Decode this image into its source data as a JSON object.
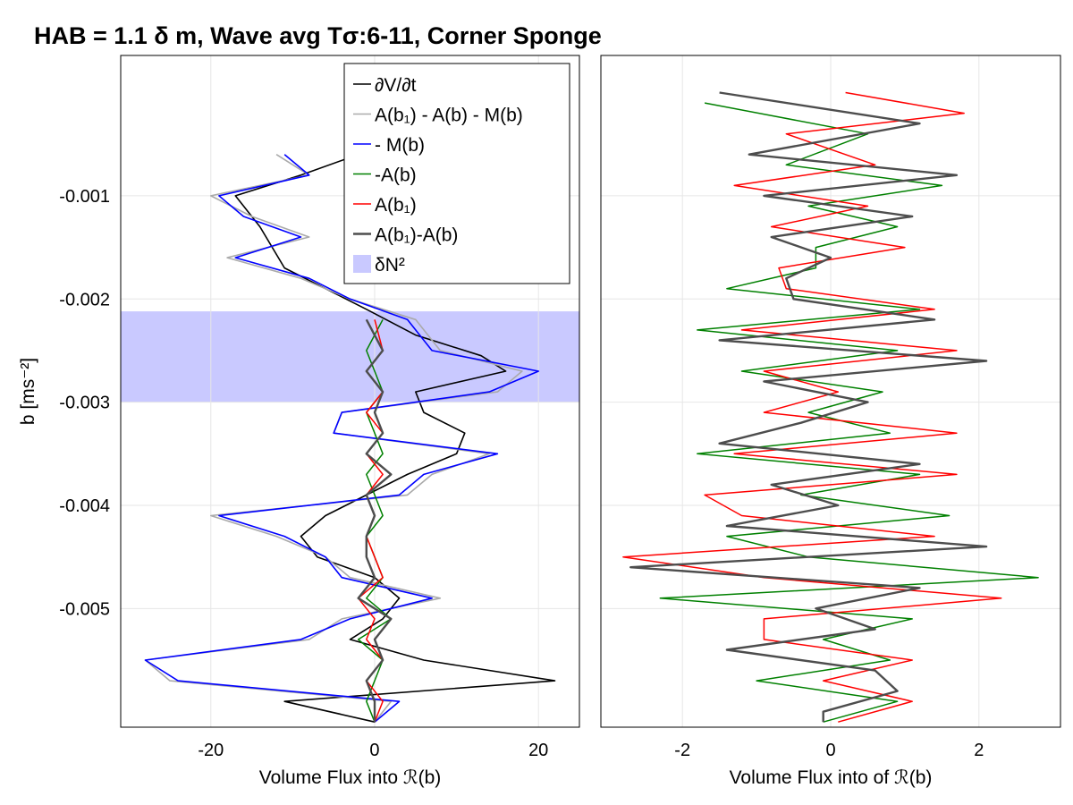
{
  "title": "HAB = 1.1 δ m, Wave avg Tσ:6-11, Corner Sponge",
  "colors": {
    "dVdt": "#000000",
    "residual": "#aaaaaa",
    "negM": "#0000ff",
    "negA": "#008000",
    "Ab1": "#ff0000",
    "Ab1mAb": "#4d4d4d",
    "band": "#c9c9ff"
  },
  "legend": {
    "position": "top-right of left panel",
    "entries": [
      {
        "key": "dVdt",
        "label": "∂V/∂t"
      },
      {
        "key": "residual",
        "label": "A(b₁) - A(b) - M(b)"
      },
      {
        "key": "negM",
        "label": "- M(b)"
      },
      {
        "key": "negA",
        "label": "-A(b)"
      },
      {
        "key": "Ab1",
        "label": "A(b₁)"
      },
      {
        "key": "Ab1mAb",
        "label": "A(b₁)-A(b)"
      },
      {
        "key": "band",
        "label": "δN²"
      }
    ]
  },
  "chart_data": [
    {
      "type": "line",
      "panel": "left",
      "ylabel": "b [ms⁻²]",
      "xlabel": "Volume Flux into ℛ(b)",
      "xlim": [
        -31,
        25
      ],
      "ylim": [
        -0.00615,
        0.00036
      ],
      "xticks": [
        -20,
        0,
        20
      ],
      "xtick_labels": [
        "-20",
        "0",
        "20"
      ],
      "yticks": [
        -0.001,
        -0.002,
        -0.003,
        -0.004,
        -0.005
      ],
      "ytick_labels": [
        "-0.001",
        "-0.002",
        "-0.003",
        "-0.004",
        "-0.005"
      ],
      "grid": true,
      "band": {
        "label": "δN²",
        "ymin": -0.003,
        "ymax": -0.00212
      },
      "series": [
        {
          "key": "dVdt",
          "b": [
            -0.0006,
            -0.0008,
            -0.001,
            -0.0013,
            -0.0017,
            -0.0019,
            -0.0021,
            -0.00235,
            -0.00255,
            -0.0027,
            -0.0029,
            -0.0031,
            -0.0033,
            -0.0035,
            -0.0037,
            -0.0039,
            -0.0041,
            -0.0043,
            -0.0045,
            -0.0047,
            -0.0049,
            -0.0051,
            -0.0053,
            -0.0055,
            -0.0057,
            -0.0059,
            -0.0061
          ],
          "x": [
            -2,
            -9,
            -17,
            -14,
            -11,
            -6,
            -1,
            5,
            13,
            16,
            5,
            6,
            11,
            10,
            4,
            -1,
            -6,
            -9,
            -7,
            0,
            3,
            1,
            -3,
            6,
            22,
            -11,
            0
          ]
        },
        {
          "key": "residual",
          "b": [
            -0.0006,
            -0.0008,
            -0.001,
            -0.0012,
            -0.0014,
            -0.0016,
            -0.0018,
            -0.002,
            -0.0022,
            -0.0025,
            -0.0027,
            -0.0029,
            -0.0031,
            -0.0033,
            -0.0035,
            -0.0037,
            -0.0039,
            -0.0041,
            -0.0043,
            -0.0045,
            -0.0047,
            -0.0049,
            -0.0051,
            -0.0053,
            -0.0055,
            -0.0057,
            -0.0059,
            -0.0061
          ],
          "x": [
            -12,
            -8,
            -20,
            -15,
            -8,
            -18,
            -9,
            -3,
            5,
            8,
            18,
            15,
            -4,
            -5,
            14,
            7,
            4,
            -20,
            -12,
            -6,
            -3,
            8,
            -4,
            -8,
            -28,
            -25,
            2,
            0
          ]
        },
        {
          "key": "negM",
          "b": [
            -0.0006,
            -0.0008,
            -0.001,
            -0.0012,
            -0.0014,
            -0.0016,
            -0.0018,
            -0.002,
            -0.0022,
            -0.0025,
            -0.0027,
            -0.0029,
            -0.0031,
            -0.0033,
            -0.0035,
            -0.0037,
            -0.0039,
            -0.0041,
            -0.0043,
            -0.0045,
            -0.0047,
            -0.0049,
            -0.0051,
            -0.0053,
            -0.0055,
            -0.0057,
            -0.0059,
            -0.0061
          ],
          "x": [
            -11,
            -8,
            -19,
            -16,
            -9,
            -17,
            -8,
            -3,
            4,
            7,
            20,
            14,
            -4,
            -5,
            15,
            6,
            3,
            -19,
            -11,
            -6,
            -4,
            7,
            -3,
            -9,
            -28,
            -24,
            3,
            0
          ]
        },
        {
          "key": "negA",
          "b": [
            -0.0022,
            -0.0025,
            -0.0027,
            -0.0029,
            -0.0031,
            -0.0033,
            -0.0035,
            -0.0037,
            -0.0039,
            -0.0041,
            -0.0043,
            -0.0045,
            -0.0047,
            -0.0049,
            -0.0051,
            -0.0053,
            -0.0055,
            -0.0057,
            -0.0059,
            -0.0061
          ],
          "x": [
            1,
            -1,
            0,
            1,
            -1,
            0,
            1,
            -1,
            0,
            1,
            -1,
            0,
            1,
            -1,
            2,
            -2,
            1,
            0,
            -1,
            0
          ]
        },
        {
          "key": "Ab1",
          "b": [
            -0.0022,
            -0.0025,
            -0.0027,
            -0.0029,
            -0.0031,
            -0.0033,
            -0.0035,
            -0.0037,
            -0.0039,
            -0.0041,
            -0.0043,
            -0.0045,
            -0.0047,
            -0.0049,
            -0.0051,
            -0.0053,
            -0.0055,
            -0.0057,
            -0.0059,
            -0.0061
          ],
          "x": [
            0,
            1,
            -1,
            1,
            -1,
            1,
            -1,
            1,
            -1,
            0,
            -1,
            0,
            1,
            -2,
            0,
            -1,
            1,
            -1,
            1,
            0
          ]
        },
        {
          "key": "Ab1mAb",
          "b": [
            -0.0022,
            -0.0025,
            -0.0027,
            -0.0029,
            -0.0031,
            -0.0033,
            -0.0035,
            -0.0037,
            -0.0039,
            -0.0041,
            -0.0043,
            -0.0045,
            -0.0047,
            -0.0049,
            -0.0051,
            -0.0053,
            -0.0055,
            -0.0057,
            -0.0059,
            -0.0061
          ],
          "x": [
            -1,
            1,
            -1,
            1,
            0,
            1,
            -1,
            2,
            -1,
            0,
            -1,
            -1,
            0,
            -2,
            2,
            0,
            1,
            -1,
            0,
            0
          ]
        }
      ]
    },
    {
      "type": "line",
      "panel": "right",
      "xlabel": "Volume Flux into of ℛ(b)",
      "xlim": [
        -3.1,
        3.1
      ],
      "ylim": [
        -0.00615,
        0.00036
      ],
      "xticks": [
        -2,
        0,
        2
      ],
      "xtick_labels": [
        "-2",
        "0",
        "2"
      ],
      "grid": true,
      "series": [
        {
          "key": "negA",
          "b": [
            -0.0001,
            -0.0004,
            -0.0007,
            -0.0009,
            -0.0011,
            -0.0013,
            -0.0015,
            -0.0017,
            -0.0019,
            -0.0021,
            -0.0023,
            -0.0025,
            -0.0027,
            -0.0029,
            -0.0031,
            -0.0033,
            -0.0035,
            -0.0037,
            -0.0039,
            -0.0041,
            -0.0043,
            -0.0045,
            -0.0047,
            -0.0049,
            -0.0051,
            -0.0053,
            -0.0055,
            -0.0057,
            -0.0059,
            -0.0061
          ],
          "x": [
            -1.7,
            0.5,
            -0.6,
            1.5,
            -0.3,
            0.9,
            -0.2,
            -0.2,
            -1.4,
            1.2,
            -1.8,
            0.9,
            -1.2,
            0.7,
            -0.3,
            0.8,
            -1.8,
            1.2,
            -0.4,
            1.6,
            -1.4,
            -0.3,
            2.8,
            -2.3,
            1.1,
            -0.1,
            0.8,
            -1.0,
            0.9,
            -0.1
          ]
        },
        {
          "key": "Ab1",
          "b": [
            0.0,
            -0.0002,
            -0.0004,
            -0.0007,
            -0.0009,
            -0.0011,
            -0.0013,
            -0.0015,
            -0.0017,
            -0.0019,
            -0.0021,
            -0.0023,
            -0.0025,
            -0.0027,
            -0.0029,
            -0.0031,
            -0.0033,
            -0.0035,
            -0.0037,
            -0.0039,
            -0.0041,
            -0.0043,
            -0.0045,
            -0.0047,
            -0.0049,
            -0.0051,
            -0.0053,
            -0.0055,
            -0.0057,
            -0.0059,
            -0.0061
          ],
          "x": [
            0.2,
            1.8,
            -0.6,
            0.6,
            -1.3,
            0.5,
            -0.8,
            1.0,
            -0.7,
            -0.6,
            1.4,
            -1.2,
            1.7,
            -0.9,
            0.1,
            -0.9,
            1.7,
            -1.3,
            1.7,
            -1.7,
            -1.2,
            1.4,
            -2.8,
            -0.9,
            2.3,
            -0.9,
            -0.9,
            1.1,
            -0.1,
            1.1,
            0.1
          ]
        },
        {
          "key": "Ab1mAb",
          "b": [
            0.0,
            -0.0003,
            -0.0006,
            -0.0008,
            -0.001,
            -0.0012,
            -0.0014,
            -0.0016,
            -0.0018,
            -0.002,
            -0.0022,
            -0.0024,
            -0.0026,
            -0.0028,
            -0.003,
            -0.0032,
            -0.0034,
            -0.0036,
            -0.0038,
            -0.004,
            -0.0042,
            -0.0044,
            -0.0046,
            -0.0048,
            -0.005,
            -0.0052,
            -0.0054,
            -0.0056,
            -0.0058,
            -0.006,
            -0.0061
          ],
          "x": [
            -1.5,
            1.2,
            -1.1,
            1.7,
            -0.9,
            1.1,
            -0.8,
            0.0,
            -0.6,
            -0.5,
            1.4,
            -1.5,
            2.1,
            -0.9,
            0.5,
            -0.4,
            -1.5,
            1.2,
            -0.8,
            0.1,
            -1.4,
            2.1,
            -2.7,
            1.2,
            -0.2,
            0.6,
            -1.4,
            0.6,
            0.9,
            -0.1,
            -0.1
          ]
        }
      ]
    }
  ]
}
